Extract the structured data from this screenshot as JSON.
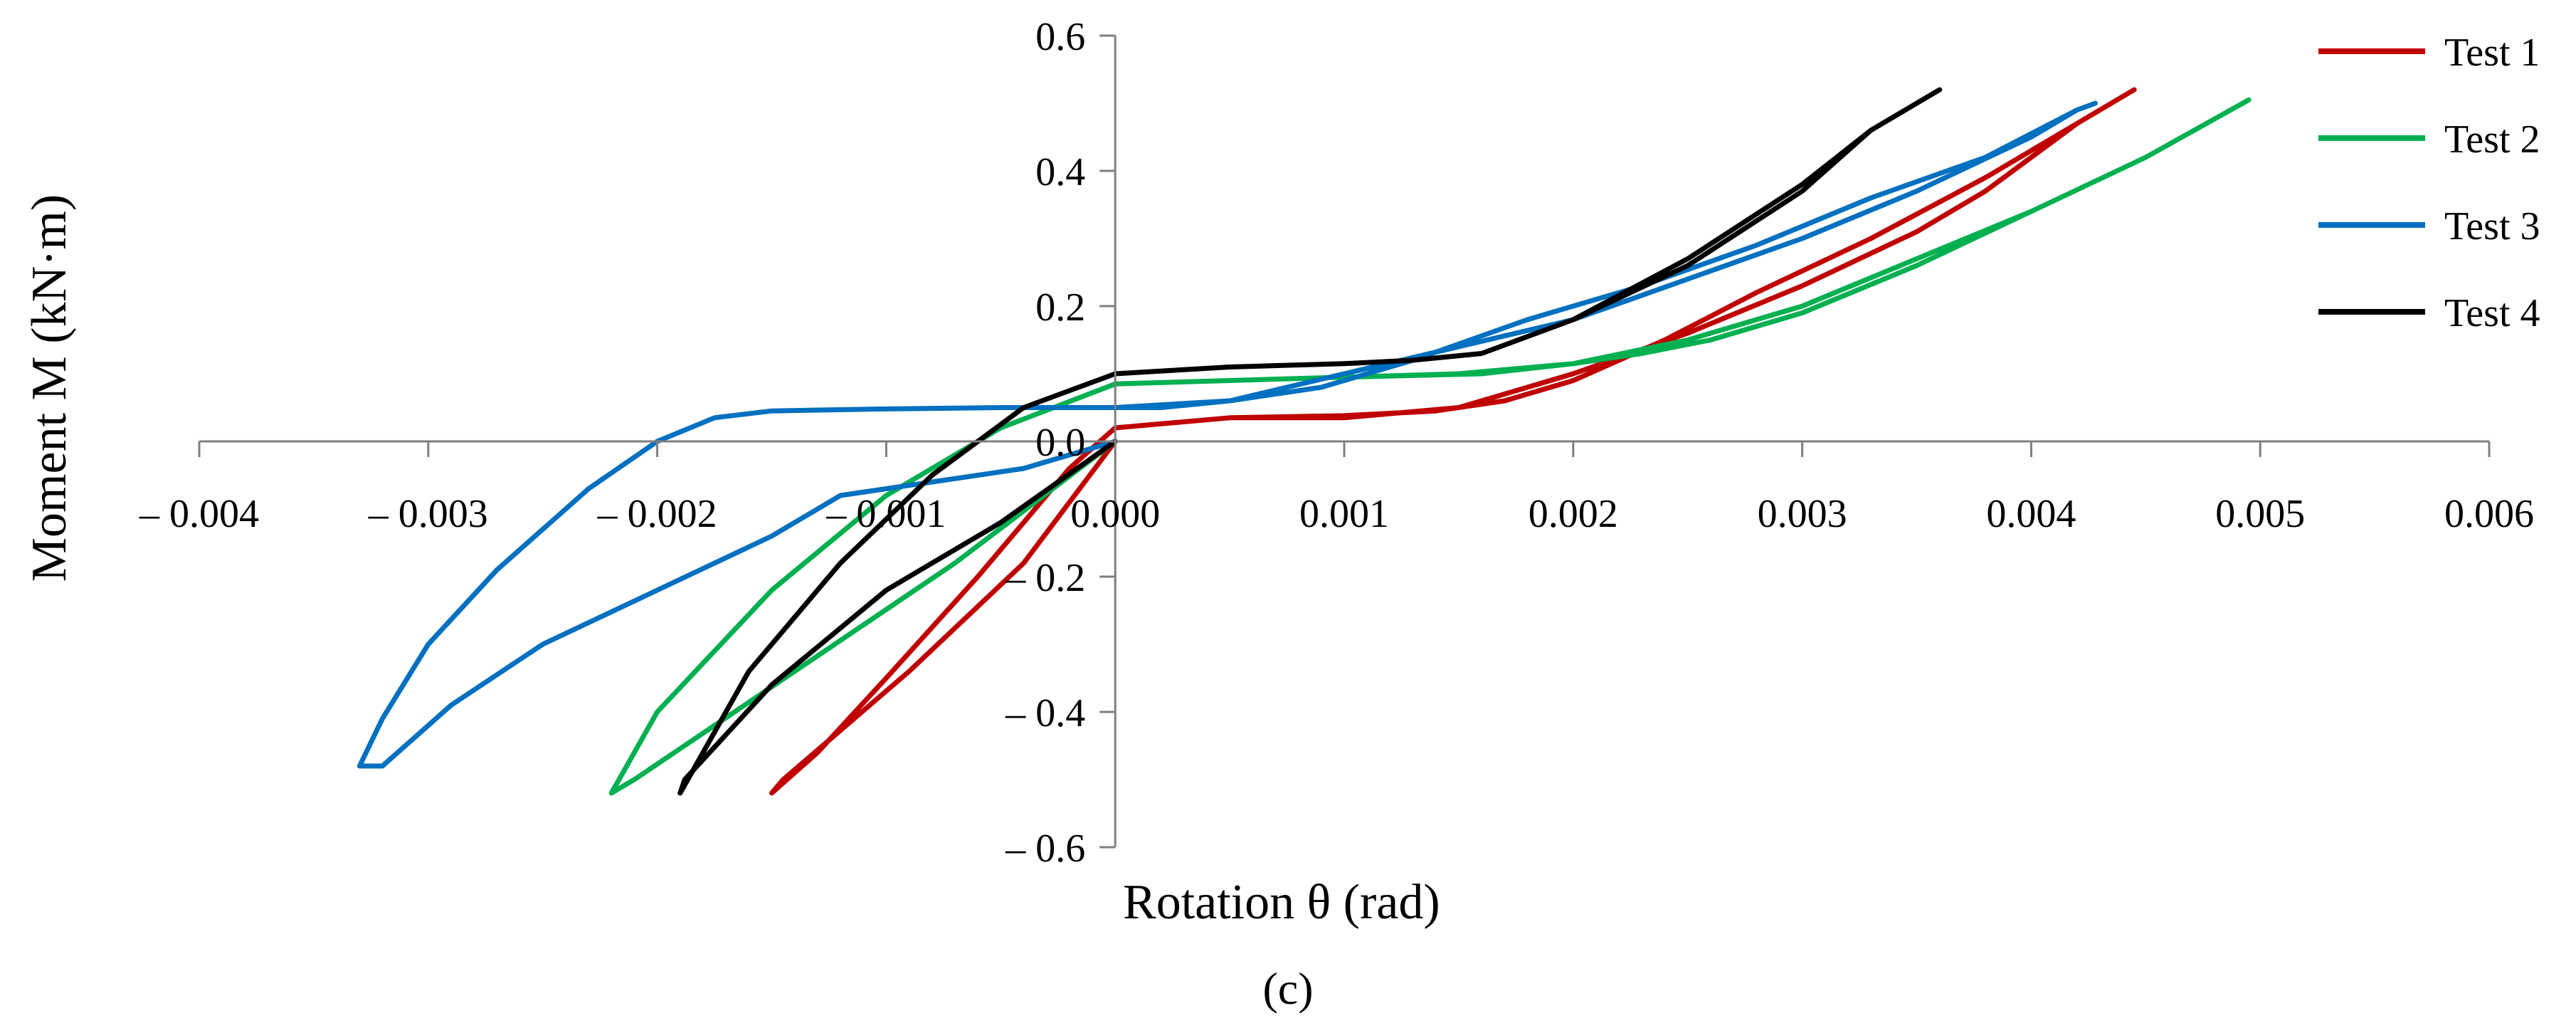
{
  "chart_data": {
    "type": "line",
    "title": "",
    "panel_label": "(c)",
    "xlabel": "Rotation θ (rad)",
    "ylabel": "Moment M (kN·m)",
    "xlim": [
      -0.004,
      0.006
    ],
    "ylim": [
      -0.6,
      0.6
    ],
    "x_tick_labels": [
      "– 0.004",
      "– 0.003",
      "– 0.002",
      "– 0.001",
      "0.000",
      "0.001",
      "0.002",
      "0.003",
      "0.004",
      "0.005",
      "0.006"
    ],
    "y_tick_labels": [
      "0.6",
      "0.4",
      "0.2",
      "0.0",
      "– 0.2",
      "– 0.4",
      "– 0.6"
    ],
    "grid": false,
    "legend_position": "top-right",
    "series": [
      {
        "name": "Test 1",
        "color": "#c00000",
        "x": [
          0.0,
          0.0005,
          0.001,
          0.0015,
          0.002,
          0.0025,
          0.003,
          0.0035,
          0.0038,
          0.004,
          0.0042,
          0.00445,
          0.0042,
          0.0038,
          0.0033,
          0.0028,
          0.0024,
          0.002,
          0.0017,
          0.0014,
          0.001,
          0.0005,
          0.0,
          -0.0002,
          -0.0006,
          -0.001,
          -0.0013,
          -0.0015,
          -0.00145,
          -0.0009,
          -0.0004,
          0.0
        ],
        "y": [
          0.02,
          0.035,
          0.035,
          0.05,
          0.1,
          0.16,
          0.23,
          0.31,
          0.37,
          0.42,
          0.47,
          0.52,
          0.47,
          0.39,
          0.3,
          0.22,
          0.15,
          0.09,
          0.06,
          0.045,
          0.038,
          0.035,
          0.02,
          -0.04,
          -0.2,
          -0.35,
          -0.46,
          -0.52,
          -0.5,
          -0.34,
          -0.18,
          0.0
        ]
      },
      {
        "name": "Test 2",
        "color": "#00b050",
        "x": [
          0.0,
          0.0005,
          0.001,
          0.0015,
          0.002,
          0.0025,
          0.003,
          0.0035,
          0.004,
          0.0045,
          0.00495,
          0.0045,
          0.004,
          0.0035,
          0.003,
          0.0026,
          0.0023,
          0.002,
          0.0016,
          0.001,
          0.0005,
          0.0,
          -0.0005,
          -0.001,
          -0.0015,
          -0.002,
          -0.0022,
          -0.0021,
          -0.0014,
          -0.0007,
          0.0
        ],
        "y": [
          0.085,
          0.09,
          0.095,
          0.1,
          0.115,
          0.15,
          0.2,
          0.27,
          0.34,
          0.42,
          0.505,
          0.42,
          0.34,
          0.26,
          0.19,
          0.15,
          0.13,
          0.115,
          0.1,
          0.095,
          0.09,
          0.085,
          0.02,
          -0.08,
          -0.22,
          -0.4,
          -0.52,
          -0.5,
          -0.34,
          -0.18,
          0.0
        ]
      },
      {
        "name": "Test 3",
        "color": "#0070c0",
        "x": [
          0.0,
          0.0005,
          0.001,
          0.0015,
          0.002,
          0.0025,
          0.003,
          0.0035,
          0.004,
          0.0042,
          0.00428,
          0.0042,
          0.0038,
          0.0033,
          0.0028,
          0.0023,
          0.0018,
          0.0013,
          0.0009,
          0.0005,
          0.0002,
          0.0,
          -0.0005,
          -0.001,
          -0.0015,
          -0.00175,
          -0.002,
          -0.0023,
          -0.0027,
          -0.003,
          -0.0032,
          -0.0033,
          -0.0032,
          -0.0029,
          -0.0025,
          -0.002,
          -0.0015,
          -0.0012,
          -0.0008,
          -0.0004,
          0.0
        ],
        "y": [
          0.05,
          0.06,
          0.1,
          0.14,
          0.18,
          0.24,
          0.3,
          0.37,
          0.45,
          0.49,
          0.5,
          0.49,
          0.42,
          0.36,
          0.29,
          0.23,
          0.18,
          0.12,
          0.08,
          0.06,
          0.05,
          0.05,
          0.05,
          0.048,
          0.045,
          0.035,
          0.0,
          -0.07,
          -0.19,
          -0.3,
          -0.41,
          -0.48,
          -0.48,
          -0.39,
          -0.3,
          -0.22,
          -0.14,
          -0.08,
          -0.06,
          -0.04,
          0.0
        ]
      },
      {
        "name": "Test 4",
        "color": "#000000",
        "x": [
          0.0,
          0.0005,
          0.001,
          0.0013,
          0.0016,
          0.002,
          0.0025,
          0.003,
          0.0033,
          0.0036,
          0.0033,
          0.003,
          0.0025,
          0.002,
          0.0016,
          0.0013,
          0.001,
          0.0005,
          0.0,
          -0.0004,
          -0.0008,
          -0.0012,
          -0.0016,
          -0.0019,
          -0.00188,
          -0.0015,
          -0.001,
          -0.0005,
          0.0
        ],
        "y": [
          0.1,
          0.11,
          0.115,
          0.12,
          0.13,
          0.18,
          0.27,
          0.38,
          0.46,
          0.52,
          0.46,
          0.37,
          0.26,
          0.18,
          0.13,
          0.12,
          0.115,
          0.11,
          0.1,
          0.05,
          -0.05,
          -0.18,
          -0.34,
          -0.52,
          -0.5,
          -0.36,
          -0.22,
          -0.12,
          0.0
        ]
      }
    ]
  }
}
